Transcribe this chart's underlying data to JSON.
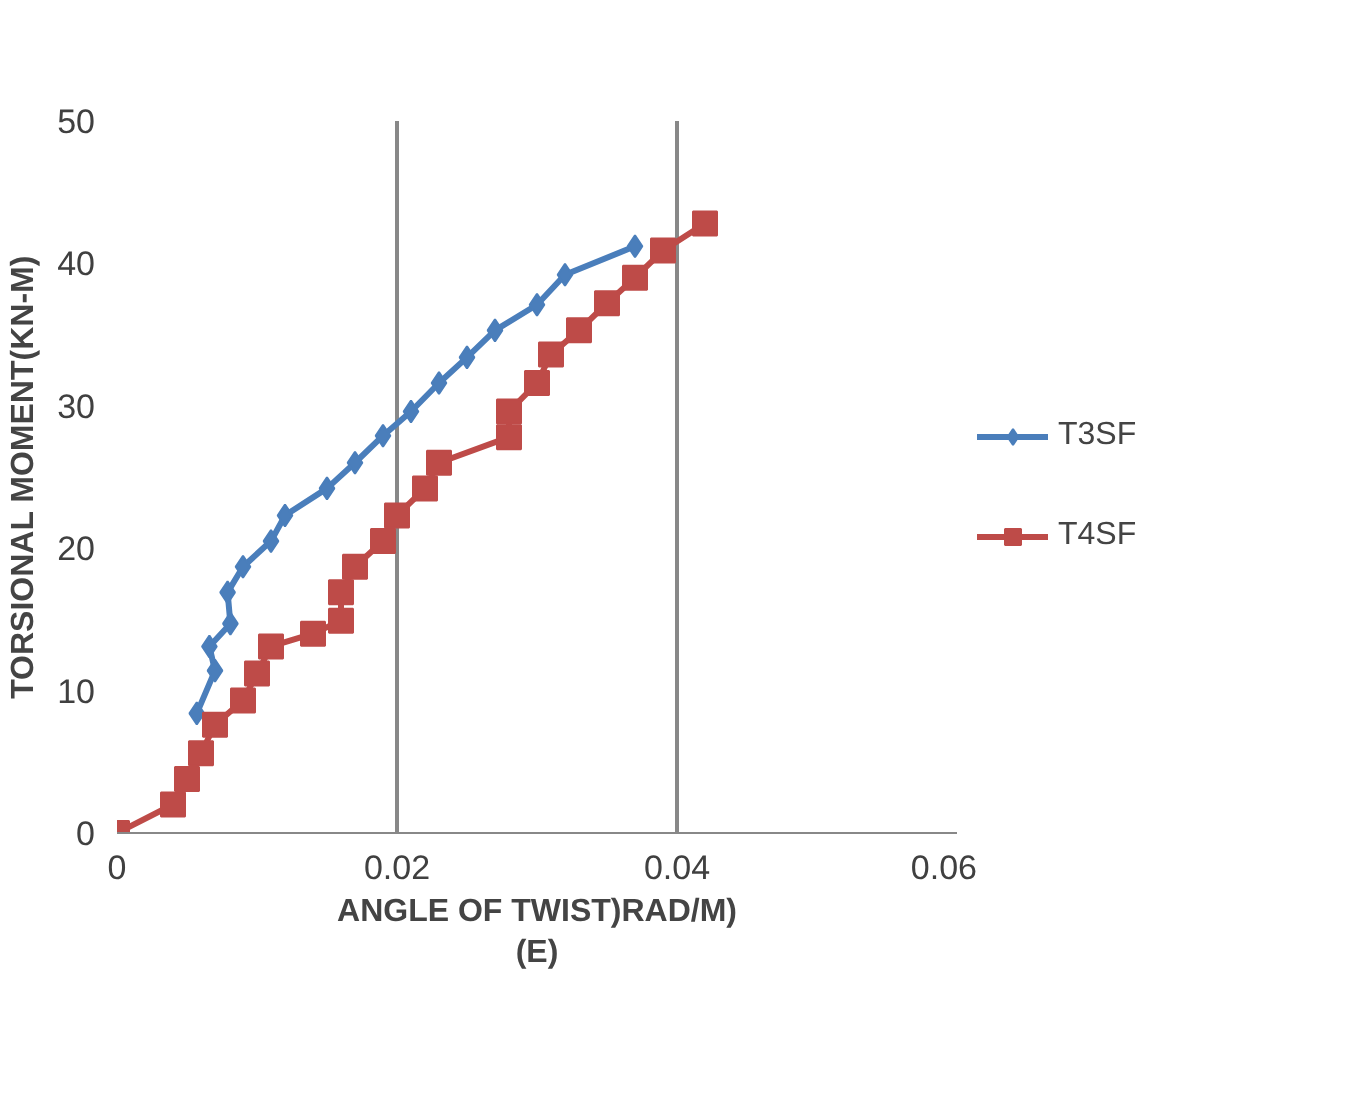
{
  "chart_data": {
    "type": "line",
    "xlabel": "ANGLE OF TWIST)RAD/M)\n(E)",
    "ylabel": "TORSIONAL MOMENT(KN-M)",
    "xlim": [
      0,
      0.06
    ],
    "xticks": [
      0,
      0.02,
      0.04,
      0.06
    ],
    "ylim": [
      0,
      50
    ],
    "yticks": [
      0,
      10,
      20,
      30,
      40,
      50
    ],
    "grid": "x",
    "legend": "right",
    "series": [
      {
        "name": "T3SF",
        "color": "#4a7ebb",
        "marker": "diamond",
        "x": [
          0.0057,
          0.007,
          0.0066,
          0.0081,
          0.0079,
          0.009,
          0.011,
          0.012,
          0.015,
          0.017,
          0.019,
          0.021,
          0.023,
          0.025,
          0.027,
          0.03,
          0.032,
          0.037
        ],
        "values": [
          8.4,
          11.4,
          13.1,
          14.7,
          16.9,
          18.7,
          20.5,
          22.3,
          24.2,
          26.0,
          27.9,
          29.6,
          31.6,
          33.4,
          35.3,
          37.1,
          39.2,
          41.2
        ]
      },
      {
        "name": "T4SF",
        "color": "#be4b48",
        "marker": "square",
        "x": [
          0,
          0.004,
          0.005,
          0.006,
          0.007,
          0.009,
          0.01,
          0.011,
          0.014,
          0.016,
          0.016,
          0.017,
          0.019,
          0.02,
          0.022,
          0.023,
          0.028,
          0.028,
          0.03,
          0.031,
          0.033,
          0.035,
          0.037,
          0.039,
          0.042
        ],
        "values": [
          0,
          2.0,
          3.8,
          5.6,
          7.6,
          9.3,
          11.2,
          13.1,
          14.0,
          14.9,
          16.9,
          18.7,
          20.5,
          22.3,
          24.2,
          26.0,
          27.8,
          29.6,
          31.6,
          33.6,
          35.3,
          37.2,
          39.0,
          40.9,
          42.8
        ]
      }
    ]
  }
}
